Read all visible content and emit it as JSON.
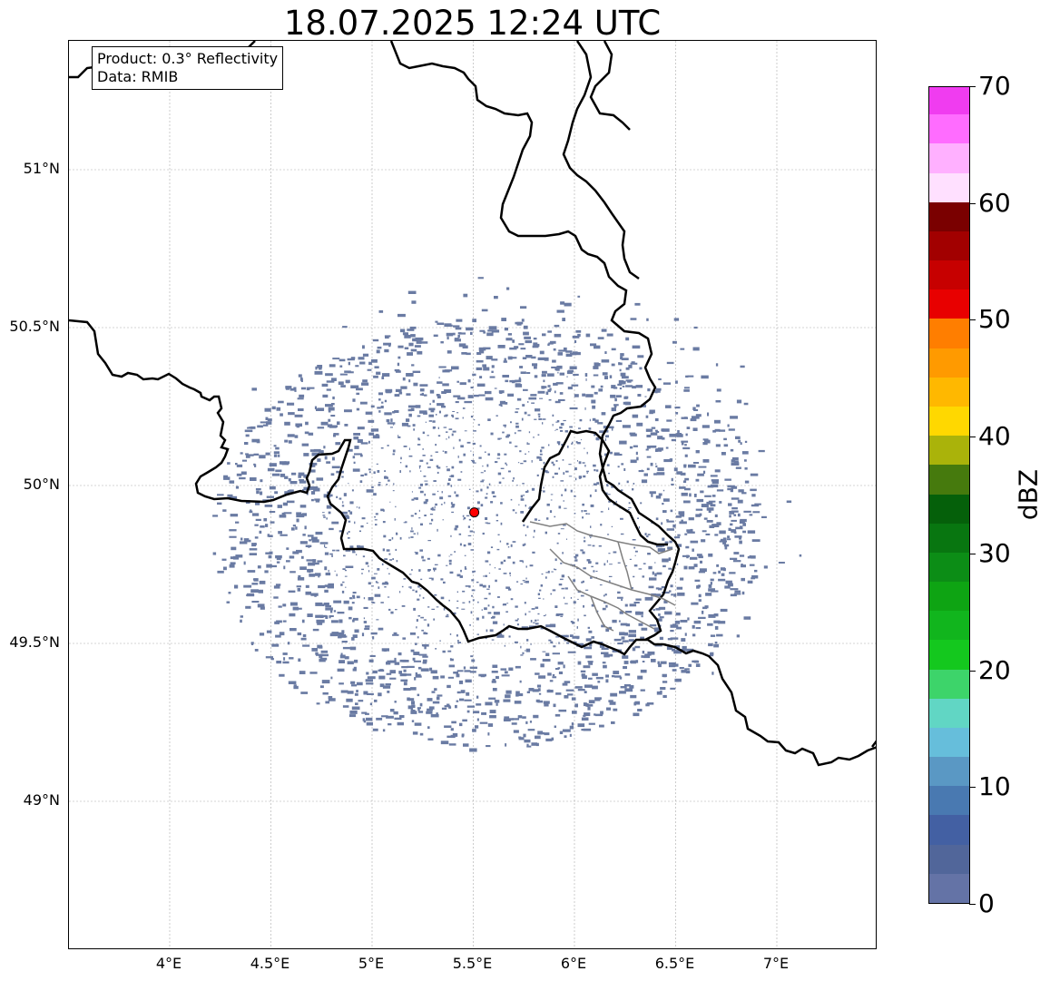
{
  "title": "18.07.2025 12:24 UTC",
  "info": {
    "product": "Product: 0.3° Reflectivity",
    "data": "Data: RMIB"
  },
  "map": {
    "lon_range": [
      3.5,
      7.5
    ],
    "lat_range": [
      48.5,
      51.4
    ],
    "gridlines": true,
    "lon_ticks": [
      {
        "value": 4.0,
        "label": "4°E"
      },
      {
        "value": 4.5,
        "label": "4.5°E"
      },
      {
        "value": 5.0,
        "label": "5°E"
      },
      {
        "value": 5.5,
        "label": "5.5°E"
      },
      {
        "value": 6.0,
        "label": "6°E"
      },
      {
        "value": 6.5,
        "label": "6.5°E"
      },
      {
        "value": 7.0,
        "label": "7°E"
      }
    ],
    "lat_ticks": [
      {
        "value": 51.0,
        "label": "51°N"
      },
      {
        "value": 50.5,
        "label": "50.5°N"
      },
      {
        "value": 50.0,
        "label": "50°N"
      },
      {
        "value": 49.5,
        "label": "49.5°N"
      },
      {
        "value": 49.0,
        "label": "49°N"
      }
    ],
    "radar_site": {
      "lon": 5.505,
      "lat": 49.915,
      "color": "#ff0000"
    },
    "echo_color": "#6a7ba3",
    "echo_extent": {
      "center_lon": 5.55,
      "center_lat": 49.85,
      "radius_deg_lat": 0.72
    },
    "borders": {
      "color": "#000000",
      "admin_color": "#808080"
    }
  },
  "colorbar": {
    "label": "dBZ",
    "min": 0,
    "max": 70,
    "ticks": [
      0,
      10,
      20,
      30,
      40,
      50,
      60,
      70
    ],
    "colors": [
      "#6473a6",
      "#51669a",
      "#4360a3",
      "#4979b1",
      "#5a98c4",
      "#66bedb",
      "#61d6c4",
      "#3dd46a",
      "#14c81e",
      "#11b51d",
      "#0ea413",
      "#0c8d16",
      "#087610",
      "#05600a",
      "#467a0d",
      "#aab30a",
      "#ffd800",
      "#ffb800",
      "#ff9a00",
      "#ff7e00",
      "#e80000",
      "#c70000",
      "#a20000",
      "#7a0000",
      "#ffe0ff",
      "#ffb0ff",
      "#ff6cff",
      "#f03cf0"
    ]
  }
}
